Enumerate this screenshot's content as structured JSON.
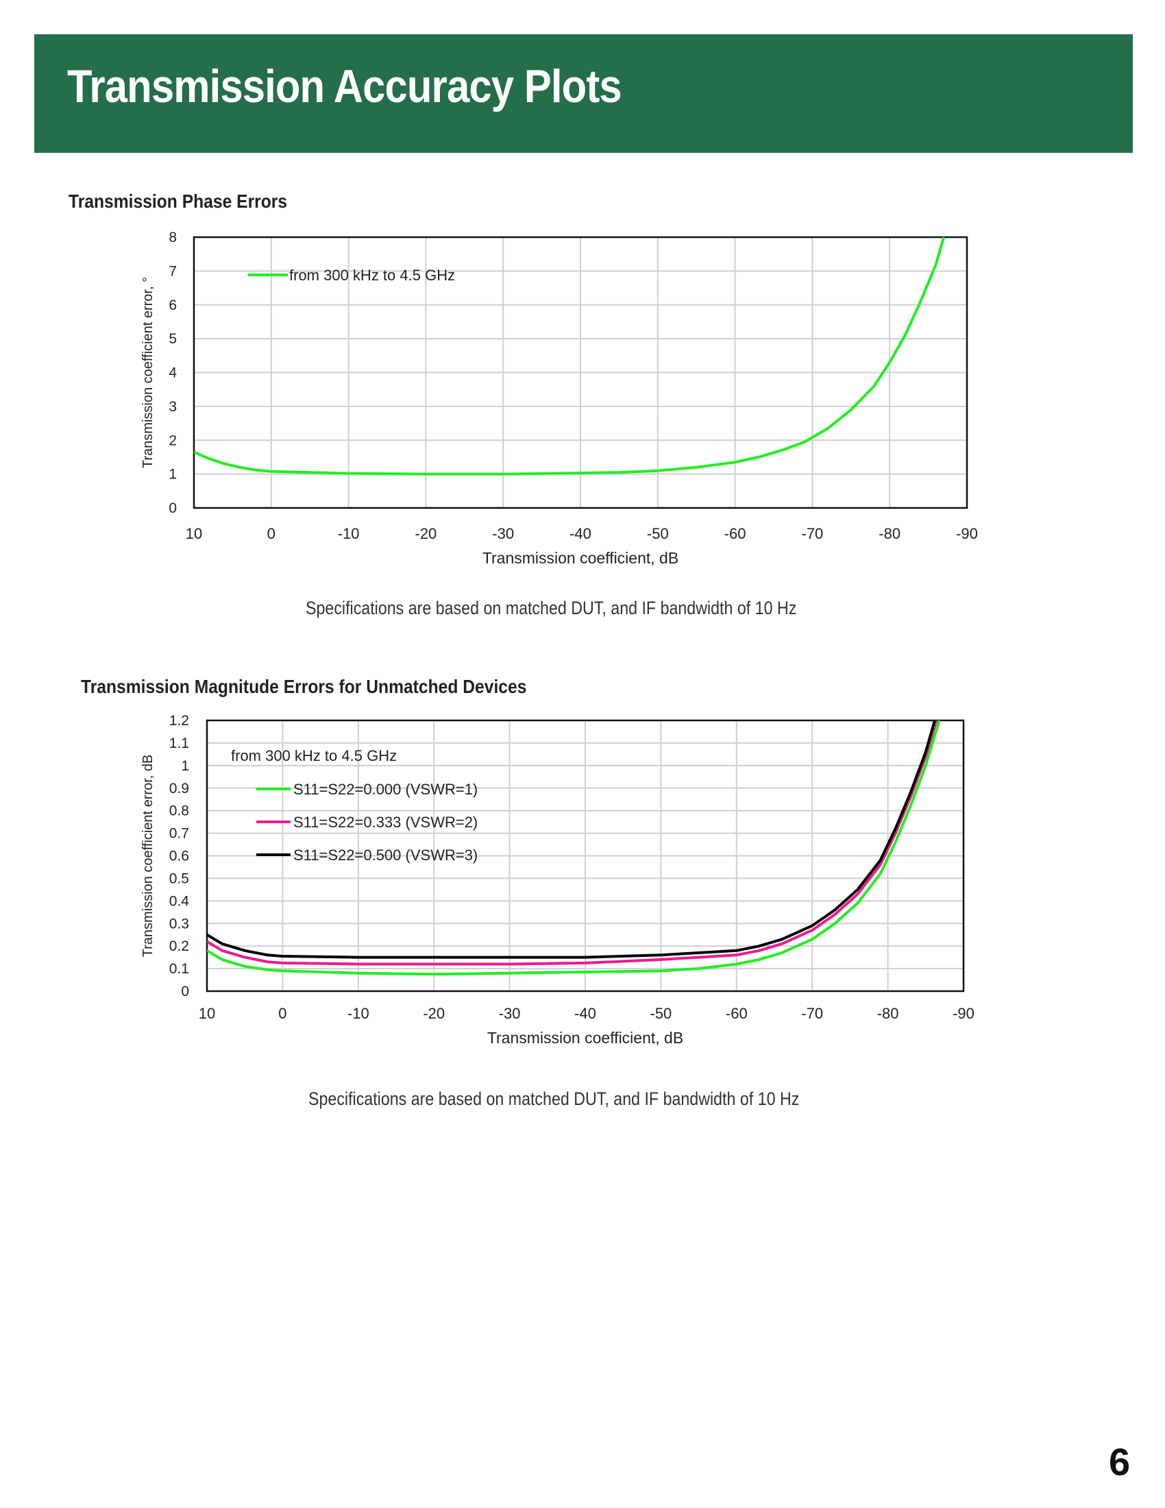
{
  "header": {
    "title": "Transmission Accuracy Plots",
    "bg_color": "#246e4a"
  },
  "sections": [
    {
      "title": "Transmission Phase Errors",
      "note": "Specifications are based on matched DUT, and IF bandwidth of 10 Hz"
    },
    {
      "title": "Transmission Magnitude Errors for Unmatched Devices",
      "note": "Specifications are based on matched DUT, and IF bandwidth of 10 Hz"
    }
  ],
  "page_number": "6",
  "chart_data": [
    {
      "type": "line",
      "title": "",
      "xlabel": "Transmission coefficient, dB",
      "ylabel": "Transmission coefficient error, °",
      "xlim": [
        10,
        -90
      ],
      "ylim": [
        0,
        8
      ],
      "x_ticks": [
        "10",
        "0",
        "-10",
        "-20",
        "-30",
        "-40",
        "-50",
        "-60",
        "-70",
        "-80",
        "-90"
      ],
      "y_ticks": [
        "0",
        "1",
        "2",
        "3",
        "4",
        "5",
        "6",
        "7",
        "8"
      ],
      "grid": true,
      "legend_position": "top-left",
      "legend_header": "",
      "series": [
        {
          "name": "from 300 kHz to 4.5 GHz",
          "color": "#22ee22",
          "x": [
            10,
            8,
            6,
            4,
            2,
            0,
            -5,
            -10,
            -20,
            -30,
            -40,
            -45,
            -50,
            -55,
            -60,
            -63,
            -66,
            -69,
            -72,
            -75,
            -78,
            -80,
            -82,
            -84,
            -86,
            -87
          ],
          "y": [
            1.65,
            1.45,
            1.3,
            1.2,
            1.12,
            1.08,
            1.05,
            1.02,
            1.0,
            1.0,
            1.03,
            1.05,
            1.1,
            1.2,
            1.35,
            1.5,
            1.7,
            1.95,
            2.35,
            2.9,
            3.6,
            4.3,
            5.1,
            6.1,
            7.2,
            8.0
          ]
        }
      ]
    },
    {
      "type": "line",
      "title": "",
      "xlabel": "Transmission coefficient, dB",
      "ylabel": "Transmission coefficient error, dB",
      "xlim": [
        10,
        -90
      ],
      "ylim": [
        0,
        1.2
      ],
      "x_ticks": [
        "10",
        "0",
        "-10",
        "-20",
        "-30",
        "-40",
        "-50",
        "-60",
        "-70",
        "-80",
        "-90"
      ],
      "y_ticks": [
        "0",
        "0.1",
        "0.2",
        "0.3",
        "0.4",
        "0.5",
        "0.6",
        "0.7",
        "0.8",
        "0.9",
        "1",
        "1.1",
        "1.2"
      ],
      "grid": true,
      "legend_position": "top-left",
      "legend_header": "from 300 kHz to 4.5 GHz",
      "series": [
        {
          "name": "S11=S22=0.000 (VSWR=1)",
          "color": "#22ee22",
          "x": [
            10,
            8,
            5,
            2,
            0,
            -10,
            -20,
            -30,
            -40,
            -50,
            -55,
            -60,
            -63,
            -66,
            -70,
            -73,
            -76,
            -79,
            -81,
            -83,
            -85,
            -86.8
          ],
          "y": [
            0.18,
            0.14,
            0.11,
            0.095,
            0.09,
            0.08,
            0.075,
            0.08,
            0.085,
            0.09,
            0.1,
            0.12,
            0.14,
            0.17,
            0.23,
            0.3,
            0.39,
            0.52,
            0.66,
            0.82,
            1.0,
            1.2
          ]
        },
        {
          "name": "S11=S22=0.333 (VSWR=2)",
          "color": "#ee1a8c",
          "x": [
            10,
            8,
            5,
            2,
            0,
            -10,
            -20,
            -30,
            -40,
            -50,
            -55,
            -60,
            -63,
            -66,
            -70,
            -73,
            -76,
            -79,
            -81,
            -83,
            -85,
            -86.4
          ],
          "y": [
            0.22,
            0.18,
            0.15,
            0.13,
            0.125,
            0.12,
            0.12,
            0.12,
            0.125,
            0.14,
            0.15,
            0.16,
            0.18,
            0.21,
            0.27,
            0.34,
            0.43,
            0.56,
            0.7,
            0.86,
            1.04,
            1.2
          ]
        },
        {
          "name": "S11=S22=0.500 (VSWR=3)",
          "color": "#000000",
          "x": [
            10,
            8,
            5,
            2,
            0,
            -10,
            -20,
            -30,
            -40,
            -50,
            -55,
            -60,
            -63,
            -66,
            -70,
            -73,
            -76,
            -79,
            -81,
            -83,
            -85,
            -86.2
          ],
          "y": [
            0.25,
            0.21,
            0.18,
            0.16,
            0.155,
            0.15,
            0.15,
            0.15,
            0.15,
            0.16,
            0.17,
            0.18,
            0.2,
            0.23,
            0.29,
            0.36,
            0.45,
            0.58,
            0.72,
            0.88,
            1.06,
            1.2
          ]
        }
      ]
    }
  ]
}
